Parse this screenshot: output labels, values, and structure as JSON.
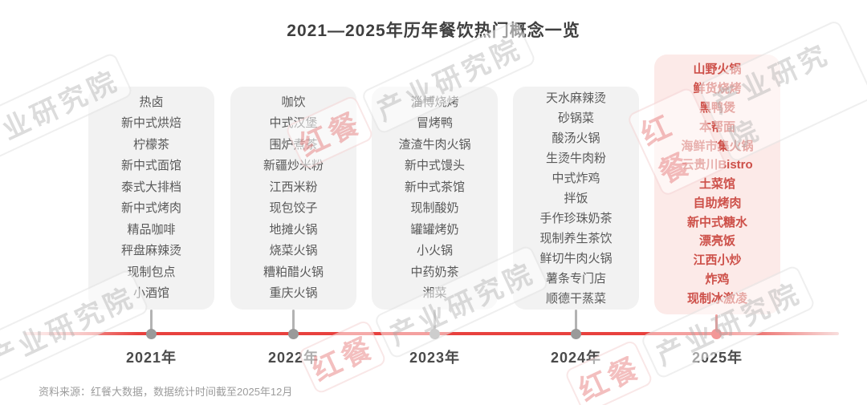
{
  "title": "2021—2025年历年餐饮热门概念一览",
  "watermark": {
    "brand": "红餐",
    "suffix": "产业研究院"
  },
  "timeline": {
    "columns": [
      {
        "year": "2021年",
        "items": [
          "热卤",
          "新中式烘焙",
          "柠檬茶",
          "新中式面馆",
          "泰式大排档",
          "新中式烤肉",
          "精品咖啡",
          "秤盘麻辣烫",
          "现制包点",
          "小酒馆"
        ]
      },
      {
        "year": "2022年",
        "items": [
          "咖饮",
          "中式汉堡",
          "围炉煮茶",
          "新疆炒米粉",
          "江西米粉",
          "现包饺子",
          "地摊火锅",
          "烧菜火锅",
          "糟粕醋火锅",
          "重庆火锅"
        ]
      },
      {
        "year": "2023年",
        "items": [
          "淄博烧烤",
          "冒烤鸭",
          "渣渣牛肉火锅",
          "新中式馒头",
          "新中式茶馆",
          "现制酸奶",
          "罐罐烤奶",
          "小火锅",
          "中药奶茶",
          "湘菜"
        ]
      },
      {
        "year": "2024年",
        "items": [
          "天水麻辣烫",
          "砂锅菜",
          "酸汤火锅",
          "生烫牛肉粉",
          "中式炸鸡",
          "拌饭",
          "手作珍珠奶茶",
          "现制养生茶饮",
          "鲜切牛肉火锅",
          "薯条专门店",
          "顺德干蒸菜"
        ]
      },
      {
        "year": "2025年",
        "highlight": true,
        "items": [
          "山野火锅",
          "鲜货烧烤",
          "黑鸭煲",
          "本帮面",
          "海鲜市集火锅",
          "云贵川Bistro",
          "土菜馆",
          "自助烤肉",
          "新中式糖水",
          "漂亮饭",
          "江西小炒",
          "炸鸡",
          "现制冰激凌"
        ]
      }
    ]
  },
  "footer": {
    "source": "资料来源：红餐大数据，数据统计时间截至2025年12月"
  },
  "colors": {
    "accent_red": "#e8413e",
    "highlight_dot_red": "#e62e2e",
    "highlight_box_pink": "#fceae8",
    "highlight_text_red": "#cd5049",
    "box_gray": "#f2f2f2",
    "box_text_gray": "#595959",
    "title_gray": "#3f3f3f",
    "dot_gray": "#9a9a9a"
  }
}
